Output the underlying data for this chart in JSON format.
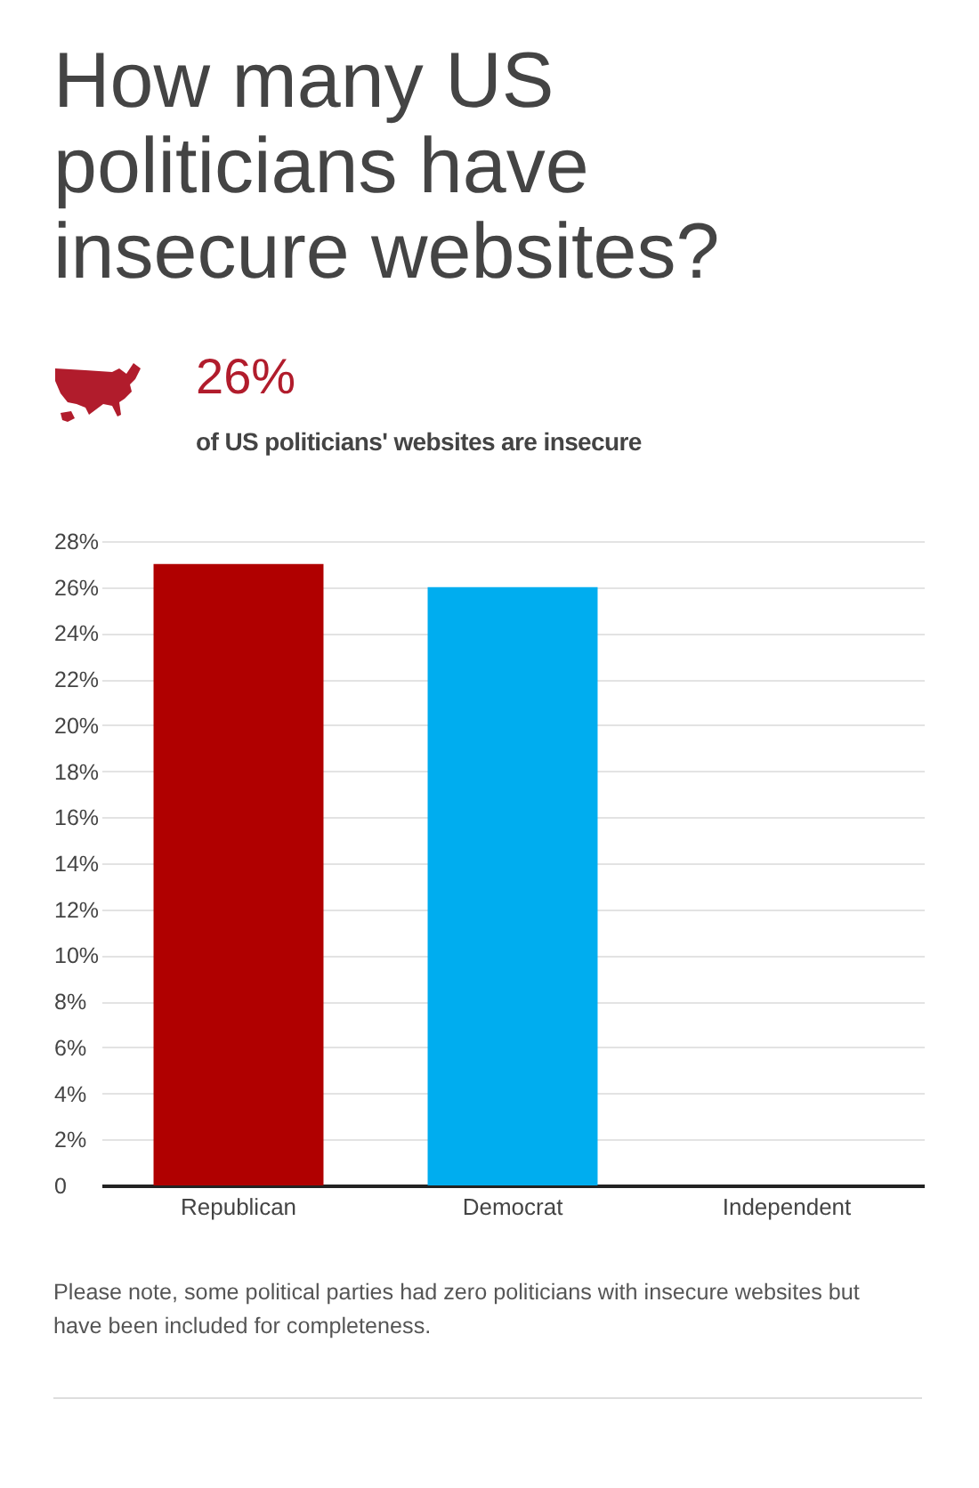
{
  "chart_data": {
    "type": "bar",
    "title": "How many US politicians have insecure websites?",
    "annotations": [
      "26%",
      "of US politicians' websites are insecure",
      "Please note, some political parties had zero politicians with insecure websites but have been included for completeness."
    ],
    "categories": [
      "Republican",
      "Democrat",
      "Independent"
    ],
    "values": [
      27,
      26,
      0
    ],
    "colors": [
      "#b00000",
      "#00adef",
      null
    ],
    "ylim": [
      0,
      28
    ],
    "yticks": [
      0,
      {
        "value": 2,
        "label": "2%"
      },
      {
        "value": 4,
        "label": "4%"
      },
      {
        "value": 6,
        "label": "6%"
      },
      {
        "value": 8,
        "label": "8%"
      },
      {
        "value": 10,
        "label": "10%"
      },
      {
        "value": 12,
        "label": "12%"
      },
      {
        "value": 14,
        "label": "14%"
      },
      {
        "value": 16,
        "label": "16%"
      },
      {
        "value": 18,
        "label": "18%"
      },
      {
        "value": 20,
        "label": "20%"
      },
      {
        "value": 22,
        "label": "22%"
      },
      {
        "value": 24,
        "label": "24%"
      },
      {
        "value": 26,
        "label": "26%"
      },
      {
        "value": 28,
        "label": "28%"
      }
    ],
    "grid": "y"
  }
}
